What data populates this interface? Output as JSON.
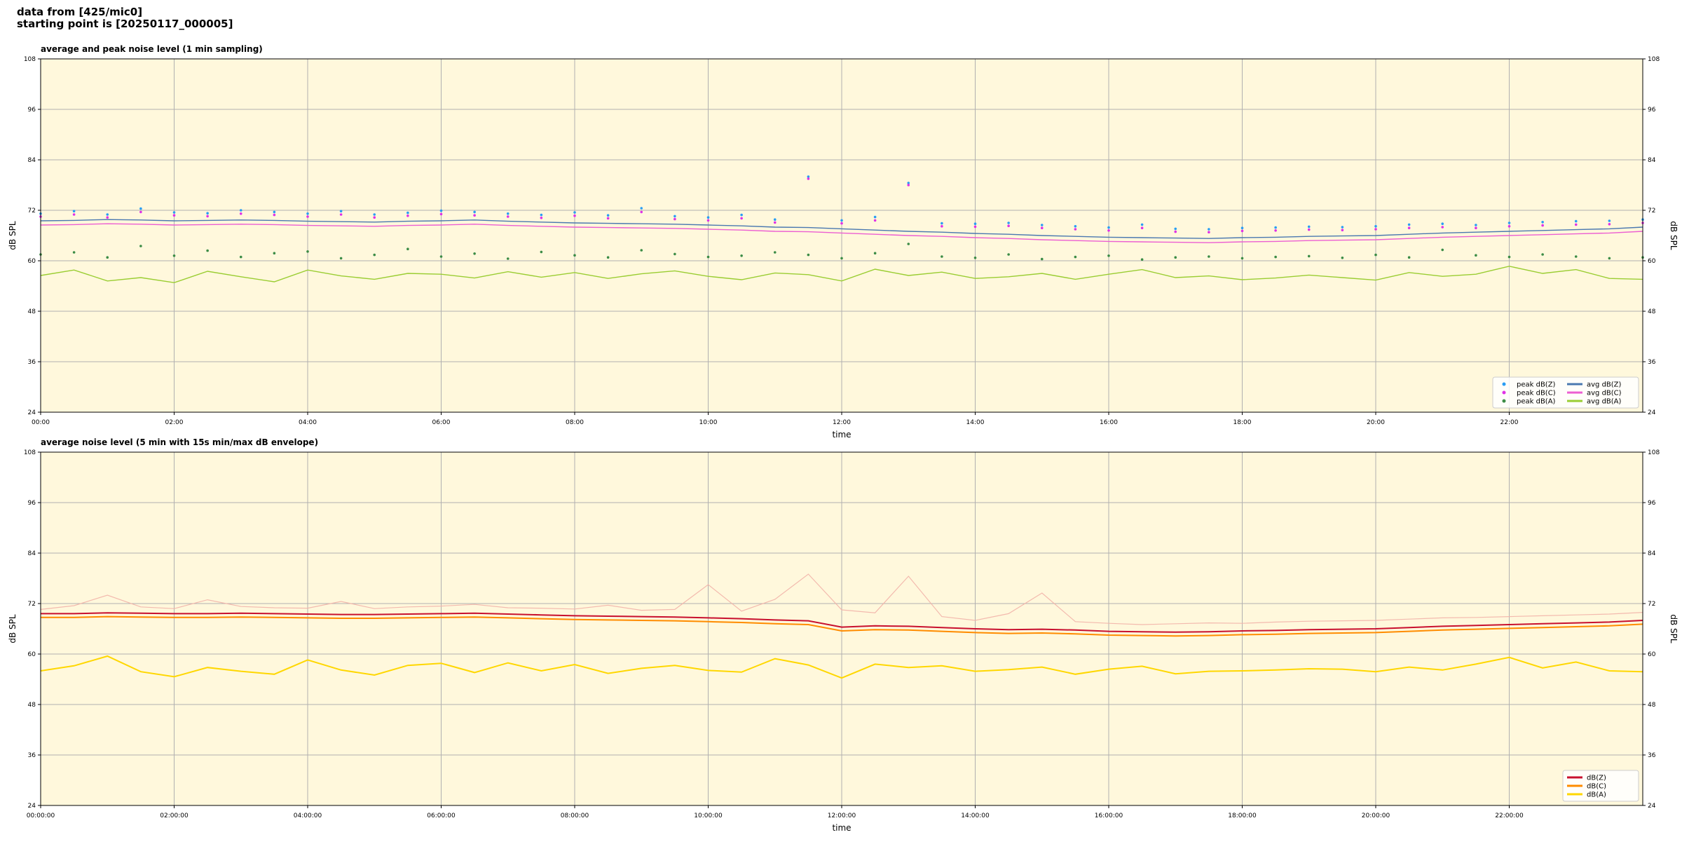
{
  "page_title": [
    "data from [425/mic0]",
    "starting point is [20250117_000005]"
  ],
  "chart_data": [
    {
      "type": "line",
      "title": "average and peak noise level (1 min sampling)",
      "xlabel": "time",
      "ylabel": "dB SPL",
      "x": [
        0,
        0.5,
        1,
        1.5,
        2,
        2.5,
        3,
        3.5,
        4,
        4.5,
        5,
        5.5,
        6,
        6.5,
        7,
        7.5,
        8,
        8.5,
        9,
        9.5,
        10,
        10.5,
        11,
        11.5,
        12,
        12.5,
        13,
        13.5,
        14,
        14.5,
        15,
        15.5,
        16,
        16.5,
        17,
        17.5,
        18,
        18.5,
        19,
        19.5,
        20,
        20.5,
        21,
        21.5,
        22,
        22.5,
        23,
        23.5,
        24
      ],
      "xlim": [
        0,
        24
      ],
      "xticks": [
        {
          "value": 0,
          "label": "00:00"
        },
        {
          "value": 2,
          "label": "02:00"
        },
        {
          "value": 4,
          "label": "04:00"
        },
        {
          "value": 6,
          "label": "06:00"
        },
        {
          "value": 8,
          "label": "08:00"
        },
        {
          "value": 10,
          "label": "10:00"
        },
        {
          "value": 12,
          "label": "12:00"
        },
        {
          "value": 14,
          "label": "14:00"
        },
        {
          "value": 16,
          "label": "16:00"
        },
        {
          "value": 18,
          "label": "18:00"
        },
        {
          "value": 20,
          "label": "20:00"
        },
        {
          "value": 22,
          "label": "22:00"
        }
      ],
      "ylim": [
        24,
        108
      ],
      "yticks": [
        24,
        36,
        48,
        60,
        72,
        84,
        96,
        108
      ],
      "grid": true,
      "legend": "lower right",
      "legend_ncol": 2,
      "series": [
        {
          "name": "peak dB(Z)",
          "style": "dots",
          "color": "#2a9df4",
          "values": [
            71.2,
            71.8,
            71.0,
            72.4,
            71.5,
            71.3,
            72.0,
            71.6,
            71.2,
            71.8,
            71.0,
            71.4,
            71.9,
            71.6,
            71.2,
            70.9,
            71.5,
            70.8,
            72.5,
            70.6,
            70.3,
            70.9,
            69.8,
            80.0,
            69.6,
            70.4,
            78.5,
            68.9,
            68.8,
            69.0,
            68.5,
            68.2,
            67.9,
            68.6,
            67.6,
            67.5,
            67.8,
            67.9,
            68.1,
            68.0,
            68.2,
            68.6,
            68.8,
            68.5,
            69.0,
            69.2,
            69.4,
            69.5,
            69.8
          ]
        },
        {
          "name": "peak dB(C)",
          "style": "dots",
          "color": "#e032e6",
          "values": [
            70.5,
            71.0,
            70.3,
            71.6,
            70.8,
            70.6,
            71.2,
            70.9,
            70.5,
            71.0,
            70.3,
            70.7,
            71.1,
            70.8,
            70.5,
            70.2,
            70.7,
            70.1,
            71.6,
            69.9,
            69.6,
            70.1,
            69.1,
            79.5,
            68.9,
            69.6,
            78.0,
            68.2,
            68.1,
            68.3,
            67.8,
            67.5,
            67.2,
            67.8,
            66.9,
            66.8,
            67.1,
            67.2,
            67.4,
            67.3,
            67.5,
            67.8,
            68.0,
            67.8,
            68.2,
            68.4,
            68.6,
            68.7,
            69.0
          ]
        },
        {
          "name": "peak dB(A)",
          "style": "dots",
          "color": "#3c8c46",
          "values": [
            61.5,
            62.0,
            60.8,
            63.5,
            61.2,
            62.4,
            60.9,
            61.8,
            62.2,
            60.6,
            61.4,
            62.8,
            61.0,
            61.7,
            60.5,
            62.1,
            61.3,
            60.8,
            62.5,
            61.6,
            60.9,
            61.2,
            62.0,
            61.4,
            60.6,
            61.8,
            64.0,
            61.0,
            60.7,
            61.5,
            60.4,
            60.9,
            61.2,
            60.3,
            60.8,
            61.0,
            60.6,
            60.9,
            61.1,
            60.7,
            61.4,
            60.8,
            62.6,
            61.3,
            60.9,
            61.5,
            61.0,
            60.6,
            60.8
          ]
        },
        {
          "name": "avg dB(Z)",
          "style": "line",
          "color": "#4a78b0",
          "values": [
            69.5,
            69.6,
            69.8,
            69.7,
            69.5,
            69.6,
            69.7,
            69.6,
            69.4,
            69.3,
            69.2,
            69.4,
            69.5,
            69.7,
            69.4,
            69.2,
            69.0,
            68.9,
            68.8,
            68.7,
            68.5,
            68.3,
            68.0,
            67.9,
            67.6,
            67.3,
            67.0,
            66.8,
            66.5,
            66.3,
            66.0,
            65.8,
            65.6,
            65.5,
            65.4,
            65.3,
            65.5,
            65.6,
            65.8,
            65.9,
            66.0,
            66.3,
            66.6,
            66.8,
            67.0,
            67.2,
            67.4,
            67.6,
            68.0
          ]
        },
        {
          "name": "avg dB(C)",
          "style": "line",
          "color": "#ec5fd2",
          "values": [
            68.5,
            68.6,
            68.8,
            68.7,
            68.5,
            68.6,
            68.7,
            68.6,
            68.4,
            68.3,
            68.2,
            68.4,
            68.5,
            68.7,
            68.4,
            68.2,
            68.0,
            67.9,
            67.8,
            67.7,
            67.5,
            67.3,
            67.0,
            66.9,
            66.6,
            66.3,
            66.0,
            65.8,
            65.5,
            65.3,
            65.0,
            64.8,
            64.6,
            64.5,
            64.4,
            64.3,
            64.5,
            64.6,
            64.8,
            64.9,
            65.0,
            65.3,
            65.6,
            65.8,
            66.0,
            66.2,
            66.4,
            66.6,
            67.0
          ]
        },
        {
          "name": "avg dB(A)",
          "style": "line",
          "color": "#9acd32",
          "values": [
            56.5,
            57.8,
            55.2,
            56.0,
            54.8,
            57.5,
            56.2,
            55.0,
            57.8,
            56.4,
            55.6,
            57.0,
            56.8,
            55.9,
            57.4,
            56.1,
            57.2,
            55.8,
            56.9,
            57.6,
            56.3,
            55.5,
            57.1,
            56.7,
            55.2,
            58.0,
            56.5,
            57.3,
            55.8,
            56.2,
            57.0,
            55.6,
            56.8,
            57.9,
            56.0,
            56.4,
            55.5,
            55.9,
            56.6,
            56.0,
            55.4,
            57.2,
            56.3,
            56.8,
            58.7,
            57.0,
            57.9,
            55.8,
            55.6
          ]
        }
      ]
    },
    {
      "type": "line",
      "title": "average noise level (5 min with 15s min/max dB envelope)",
      "xlabel": "time",
      "ylabel": "dB SPL",
      "x": [
        0,
        0.5,
        1,
        1.5,
        2,
        2.5,
        3,
        3.5,
        4,
        4.5,
        5,
        5.5,
        6,
        6.5,
        7,
        7.5,
        8,
        8.5,
        9,
        9.5,
        10,
        10.5,
        11,
        11.5,
        12,
        12.5,
        13,
        13.5,
        14,
        14.5,
        15,
        15.5,
        16,
        16.5,
        17,
        17.5,
        18,
        18.5,
        19,
        19.5,
        20,
        20.5,
        21,
        21.5,
        22,
        22.5,
        23,
        23.5,
        24
      ],
      "xlim": [
        0,
        24
      ],
      "xticks": [
        {
          "value": 0,
          "label": "00:00:00"
        },
        {
          "value": 2,
          "label": "02:00:00"
        },
        {
          "value": 4,
          "label": "04:00:00"
        },
        {
          "value": 6,
          "label": "06:00:00"
        },
        {
          "value": 8,
          "label": "08:00:00"
        },
        {
          "value": 10,
          "label": "10:00:00"
        },
        {
          "value": 12,
          "label": "12:00:00"
        },
        {
          "value": 14,
          "label": "14:00:00"
        },
        {
          "value": 16,
          "label": "16:00:00"
        },
        {
          "value": 18,
          "label": "18:00:00"
        },
        {
          "value": 20,
          "label": "20:00:00"
        },
        {
          "value": 22,
          "label": "22:00:00"
        }
      ],
      "ylim": [
        24,
        108
      ],
      "yticks": [
        24,
        36,
        48,
        60,
        72,
        84,
        96,
        108
      ],
      "grid": true,
      "legend": "lower right",
      "legend_ncol": 1,
      "envelope": {
        "color": "#f2b3a8",
        "upper": [
          70.6,
          71.5,
          74.0,
          71.2,
          70.8,
          72.9,
          71.3,
          71.0,
          70.9,
          72.5,
          70.8,
          71.2,
          71.4,
          71.8,
          71.0,
          70.9,
          70.7,
          71.6,
          70.4,
          70.6,
          76.5,
          70.2,
          73.0,
          79.0,
          70.5,
          69.8,
          78.5,
          68.9,
          68.0,
          69.6,
          74.5,
          67.7,
          67.3,
          67.0,
          67.2,
          67.4,
          67.3,
          67.6,
          67.8,
          67.9,
          68.0,
          68.3,
          68.6,
          68.7,
          68.9,
          69.1,
          69.3,
          69.5,
          69.9
        ]
      },
      "series": [
        {
          "name": "dB(Z)",
          "style": "line",
          "color": "#c8102e",
          "values": [
            69.6,
            69.6,
            69.8,
            69.7,
            69.6,
            69.6,
            69.7,
            69.6,
            69.5,
            69.4,
            69.4,
            69.5,
            69.6,
            69.7,
            69.5,
            69.3,
            69.1,
            69.0,
            68.9,
            68.8,
            68.6,
            68.4,
            68.1,
            67.9,
            66.4,
            66.7,
            66.6,
            66.3,
            66.0,
            65.8,
            65.9,
            65.7,
            65.4,
            65.3,
            65.2,
            65.3,
            65.5,
            65.6,
            65.8,
            65.9,
            66.0,
            66.3,
            66.6,
            66.8,
            67.0,
            67.2,
            67.4,
            67.6,
            68.0
          ]
        },
        {
          "name": "dB(C)",
          "style": "line",
          "color": "#ff8c00",
          "values": [
            68.7,
            68.7,
            68.9,
            68.8,
            68.7,
            68.7,
            68.8,
            68.7,
            68.6,
            68.5,
            68.5,
            68.6,
            68.7,
            68.8,
            68.6,
            68.4,
            68.2,
            68.1,
            68.0,
            67.9,
            67.7,
            67.5,
            67.2,
            67.0,
            65.5,
            65.8,
            65.7,
            65.4,
            65.1,
            64.9,
            65.0,
            64.8,
            64.5,
            64.4,
            64.3,
            64.4,
            64.6,
            64.7,
            64.9,
            65.0,
            65.1,
            65.4,
            65.7,
            65.9,
            66.1,
            66.3,
            66.5,
            66.7,
            67.1
          ]
        },
        {
          "name": "dB(A)",
          "style": "line",
          "color": "#ffd700",
          "values": [
            56.0,
            57.2,
            59.5,
            55.8,
            54.6,
            56.8,
            55.9,
            55.2,
            58.6,
            56.2,
            55.0,
            57.3,
            57.8,
            55.6,
            57.9,
            56.0,
            57.5,
            55.4,
            56.6,
            57.3,
            56.1,
            55.7,
            58.9,
            57.4,
            54.3,
            57.6,
            56.8,
            57.2,
            55.9,
            56.3,
            56.9,
            55.2,
            56.4,
            57.1,
            55.3,
            55.9,
            56.0,
            56.2,
            56.5,
            56.4,
            55.8,
            56.9,
            56.2,
            57.6,
            59.2,
            56.7,
            58.1,
            56.0,
            55.8
          ]
        }
      ]
    }
  ]
}
